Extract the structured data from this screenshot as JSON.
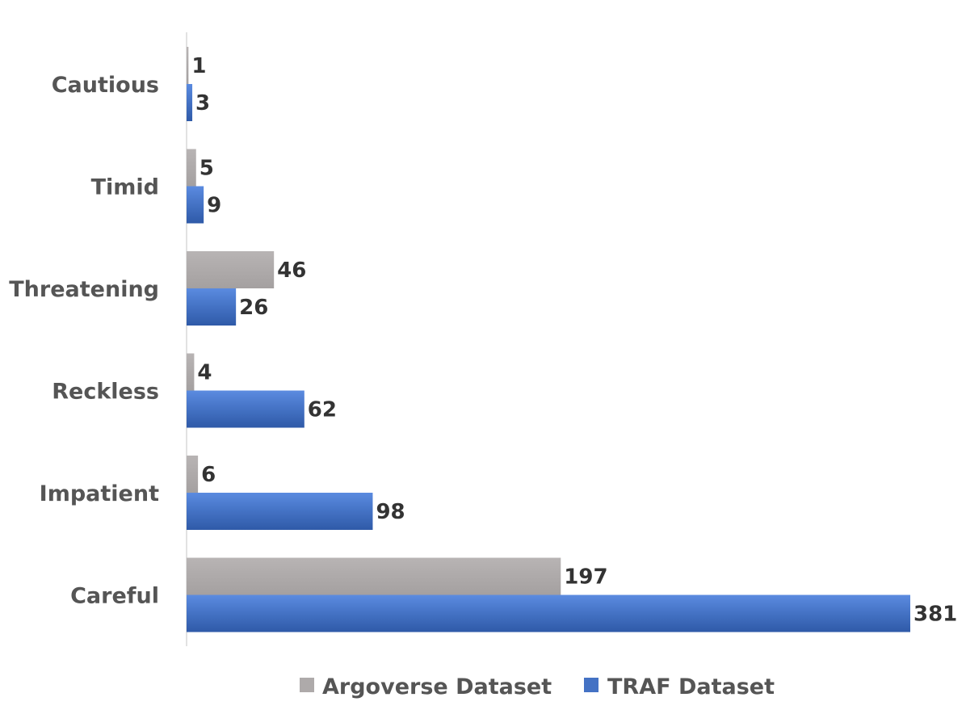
{
  "chart_data": {
    "type": "bar",
    "orientation": "horizontal",
    "categories": [
      "Cautious",
      "Timid",
      "Threatening",
      "Reckless",
      "Impatient",
      "Careful"
    ],
    "series": [
      {
        "name": "Argoverse Dataset",
        "color": "#aeaaaa",
        "values": [
          1,
          5,
          46,
          4,
          6,
          197
        ]
      },
      {
        "name": "TRAF Dataset",
        "color": "#4472c4",
        "values": [
          3,
          9,
          26,
          62,
          98,
          381
        ]
      }
    ],
    "title": "",
    "xlabel": "",
    "ylabel": "",
    "xlim": [
      0,
      381
    ],
    "grid": false,
    "legend_position": "bottom"
  }
}
